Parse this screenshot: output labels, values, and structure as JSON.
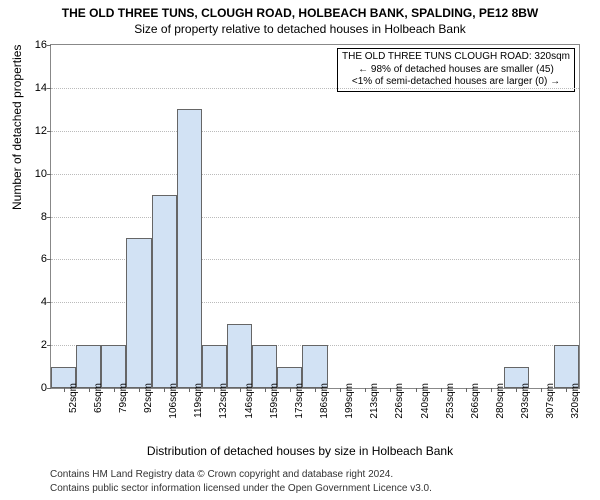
{
  "chart": {
    "type": "histogram",
    "title_main": "THE OLD THREE TUNS, CLOUGH ROAD, HOLBEACH BANK, SPALDING, PE12 8BW",
    "title_sub": "Size of property relative to detached houses in Holbeach Bank",
    "ylabel": "Number of detached properties",
    "xlabel": "Distribution of detached houses by size in Holbeach Bank",
    "ylim": [
      0,
      16
    ],
    "ytick_step": 2,
    "yticks": [
      0,
      2,
      4,
      6,
      8,
      10,
      12,
      14,
      16
    ],
    "background_color": "#ffffff",
    "grid_color": "#bbbbbb",
    "bar_fill": "#d2e2f4",
    "bar_border": "#666666",
    "bins": [
      {
        "label": "52sqm",
        "value": 1
      },
      {
        "label": "65sqm",
        "value": 2
      },
      {
        "label": "79sqm",
        "value": 2
      },
      {
        "label": "92sqm",
        "value": 7
      },
      {
        "label": "106sqm",
        "value": 9
      },
      {
        "label": "119sqm",
        "value": 13
      },
      {
        "label": "132sqm",
        "value": 2
      },
      {
        "label": "146sqm",
        "value": 3
      },
      {
        "label": "159sqm",
        "value": 2
      },
      {
        "label": "173sqm",
        "value": 1
      },
      {
        "label": "186sqm",
        "value": 2
      },
      {
        "label": "199sqm",
        "value": 0
      },
      {
        "label": "213sqm",
        "value": 0
      },
      {
        "label": "226sqm",
        "value": 0
      },
      {
        "label": "240sqm",
        "value": 0
      },
      {
        "label": "253sqm",
        "value": 0
      },
      {
        "label": "266sqm",
        "value": 0
      },
      {
        "label": "280sqm",
        "value": 0
      },
      {
        "label": "293sqm",
        "value": 1
      },
      {
        "label": "307sqm",
        "value": 0
      },
      {
        "label": "320sqm",
        "value": 2
      }
    ],
    "infobox": {
      "line1": "THE OLD THREE TUNS CLOUGH ROAD: 320sqm",
      "line2": "← 98% of detached houses are smaller (45)",
      "line3": "<1% of semi-detached houses are larger (0) →"
    },
    "footer1": "Contains HM Land Registry data © Crown copyright and database right 2024.",
    "footer2": "Contains public sector information licensed under the Open Government Licence v3.0."
  }
}
